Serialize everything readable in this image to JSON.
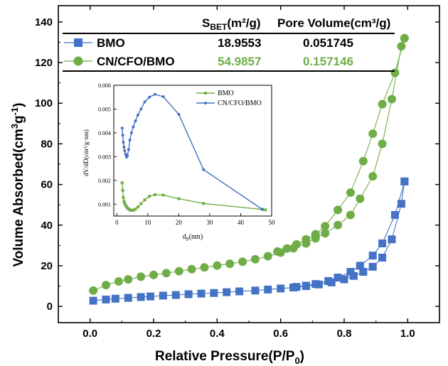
{
  "chart_data": [
    {
      "type": "scatter",
      "title": "",
      "xlabel": "Relative Pressure(P/P",
      "xlabel_sub": "0",
      "xlabel_close": ")",
      "ylabel": "Volume Absorbed(cm",
      "ylabel_sup1": "3",
      "ylabel_mid": "g",
      "ylabel_sup2": "-1",
      "ylabel_close": ")",
      "xlim": [
        -0.1,
        1.1
      ],
      "ylim": [
        -8,
        148
      ],
      "xticks": [
        0.0,
        0.2,
        0.4,
        0.6,
        0.8,
        1.0
      ],
      "xtick_labels": [
        "0.0",
        "0.2",
        "0.4",
        "0.6",
        "0.8",
        "1.0"
      ],
      "yticks": [
        0,
        20,
        40,
        60,
        80,
        100,
        120,
        140
      ],
      "ytick_labels": [
        "0",
        "20",
        "40",
        "60",
        "80",
        "100",
        "120",
        "140"
      ],
      "table": {
        "header": {
          "col1": "S",
          "col1_sub": "BET",
          "col1_rest": "(m²/g)",
          "col2": "Pore Volume(cm³/g)"
        },
        "rows": [
          {
            "name": "BMO",
            "sbet": "18.9553",
            "pore": "0.051745",
            "color": "#4472c4",
            "marker": "square"
          },
          {
            "name": "CN/CFO/BMO",
            "sbet": "54.9857",
            "pore": "0.157146",
            "color": "#70ad47",
            "marker": "circle"
          }
        ]
      },
      "series": [
        {
          "name": "BMO",
          "color": "#4472c4",
          "marker": "square",
          "adsorption": {
            "x": [
              0.01,
              0.05,
              0.08,
              0.12,
              0.16,
              0.19,
              0.23,
              0.27,
              0.31,
              0.35,
              0.39,
              0.43,
              0.47,
              0.52,
              0.56,
              0.6,
              0.64,
              0.68,
              0.72,
              0.76,
              0.8,
              0.83,
              0.86,
              0.89,
              0.92,
              0.95,
              0.98,
              0.99
            ],
            "y": [
              2.8,
              3.4,
              3.8,
              4.2,
              4.6,
              4.9,
              5.3,
              5.6,
              6.0,
              6.3,
              6.6,
              7.0,
              7.4,
              7.8,
              8.3,
              8.8,
              9.3,
              10.0,
              10.8,
              11.8,
              13.3,
              15.0,
              17.0,
              19.5,
              24.0,
              33.0,
              50.5,
              61.5
            ]
          },
          "desorption": {
            "x": [
              0.99,
              0.96,
              0.92,
              0.89,
              0.85,
              0.82,
              0.78,
              0.75,
              0.71,
              0.68,
              0.65
            ],
            "y": [
              61.5,
              45.0,
              31.0,
              25.0,
              20.0,
              17.0,
              14.2,
              12.5,
              11.0,
              10.2,
              9.6
            ]
          }
        },
        {
          "name": "CN/CFO/BMO",
          "color": "#70ad47",
          "marker": "circle",
          "adsorption": {
            "x": [
              0.01,
              0.05,
              0.09,
              0.12,
              0.16,
              0.2,
              0.24,
              0.28,
              0.32,
              0.36,
              0.4,
              0.44,
              0.48,
              0.52,
              0.56,
              0.6,
              0.64,
              0.68,
              0.71,
              0.74,
              0.78,
              0.82,
              0.85,
              0.89,
              0.92,
              0.95,
              0.98,
              0.99
            ],
            "y": [
              7.8,
              10.5,
              12.3,
              13.3,
              14.6,
              15.5,
              16.4,
              17.3,
              18.3,
              19.2,
              20.1,
              21.0,
              22.0,
              23.2,
              24.7,
              26.5,
              28.6,
              31.0,
              33.5,
              36.0,
              40.0,
              45.0,
              53.0,
              64.0,
              80.0,
              102.0,
              128.0,
              132.0
            ]
          },
          "desorption": {
            "x": [
              0.99,
              0.96,
              0.92,
              0.89,
              0.86,
              0.82,
              0.78,
              0.74,
              0.71,
              0.68,
              0.65,
              0.62,
              0.59
            ],
            "y": [
              132.0,
              115.0,
              99.5,
              85.0,
              71.5,
              56.0,
              47.5,
              39.5,
              35.5,
              33.0,
              30.5,
              28.5,
              27.0
            ]
          }
        }
      ]
    },
    {
      "type": "line",
      "title": "",
      "xlabel": "d",
      "xlabel_sub": "P",
      "xlabel_rest": "(nm)",
      "ylabel": "dV/dD(cm³/g·nm)",
      "xlim": [
        -1,
        50
      ],
      "ylim": [
        0.0005,
        0.006
      ],
      "xticks": [
        0,
        10,
        20,
        30,
        40,
        50
      ],
      "xtick_labels": [
        "0",
        "10",
        "20",
        "30",
        "40",
        "50"
      ],
      "yticks": [
        0.001,
        0.002,
        0.003,
        0.004,
        0.005,
        0.006
      ],
      "ytick_labels": [
        "0.001",
        "0.002",
        "0.003",
        "0.004",
        "0.005",
        "0.006"
      ],
      "legend_position": "top-right",
      "series": [
        {
          "name": "BMO",
          "color": "#70ad47",
          "marker": "square",
          "x": [
            1.7,
            1.9,
            2.1,
            2.3,
            2.5,
            2.8,
            3.1,
            3.4,
            3.8,
            4.2,
            4.7,
            5.3,
            6.0,
            6.8,
            7.8,
            9.0,
            10.5,
            12.3,
            15.0,
            20.0,
            28.0,
            47.0,
            48.0
          ],
          "y": [
            0.0019,
            0.00158,
            0.00128,
            0.00112,
            0.00104,
            0.00096,
            0.0009,
            0.00084,
            0.0008,
            0.00076,
            0.00074,
            0.00075,
            0.00079,
            0.00088,
            0.00102,
            0.00118,
            0.00133,
            0.0014,
            0.00138,
            0.00123,
            0.00103,
            0.00078,
            0.00076
          ]
        },
        {
          "name": "CN/CFO/BMO",
          "color": "#4472c4",
          "marker": "circle",
          "x": [
            1.7,
            1.9,
            2.1,
            2.3,
            2.5,
            2.8,
            3.1,
            3.4,
            3.8,
            4.2,
            4.7,
            5.3,
            6.0,
            6.8,
            7.8,
            9.0,
            10.5,
            12.3,
            15.0,
            20.0,
            28.0,
            47.0
          ],
          "y": [
            0.0042,
            0.0039,
            0.0036,
            0.0034,
            0.00325,
            0.0031,
            0.00298,
            0.00305,
            0.0033,
            0.0037,
            0.004,
            0.00425,
            0.0045,
            0.00475,
            0.005,
            0.0053,
            0.0055,
            0.00562,
            0.00552,
            0.00478,
            0.00245,
            0.00078
          ]
        }
      ]
    }
  ]
}
